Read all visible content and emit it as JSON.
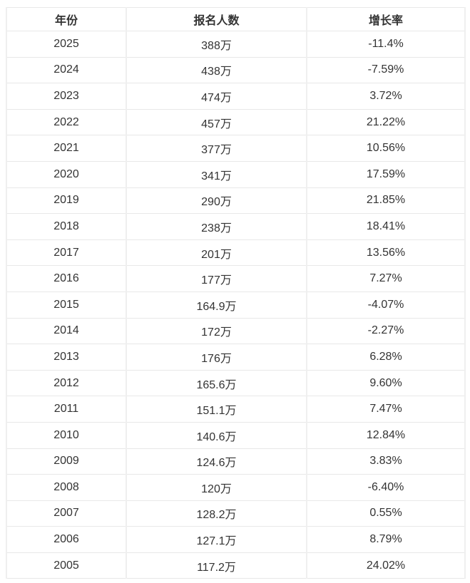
{
  "chart_data": {
    "type": "table",
    "columns": [
      "年份",
      "报名人数",
      "增长率"
    ],
    "rows": [
      [
        "2025",
        "388万",
        "-11.4%"
      ],
      [
        "2024",
        "438万",
        "-7.59%"
      ],
      [
        "2023",
        "474万",
        "3.72%"
      ],
      [
        "2022",
        "457万",
        "21.22%"
      ],
      [
        "2021",
        "377万",
        "10.56%"
      ],
      [
        "2020",
        "341万",
        "17.59%"
      ],
      [
        "2019",
        "290万",
        "21.85%"
      ],
      [
        "2018",
        "238万",
        "18.41%"
      ],
      [
        "2017",
        "201万",
        "13.56%"
      ],
      [
        "2016",
        "177万",
        "7.27%"
      ],
      [
        "2015",
        "164.9万",
        "-4.07%"
      ],
      [
        "2014",
        "172万",
        "-2.27%"
      ],
      [
        "2013",
        "176万",
        "6.28%"
      ],
      [
        "2012",
        "165.6万",
        "9.60%"
      ],
      [
        "2011",
        "151.1万",
        "7.47%"
      ],
      [
        "2010",
        "140.6万",
        "12.84%"
      ],
      [
        "2009",
        "124.6万",
        "3.83%"
      ],
      [
        "2008",
        "120万",
        "-6.40%"
      ],
      [
        "2007",
        "128.2万",
        "0.55%"
      ],
      [
        "2006",
        "127.1万",
        "8.79%"
      ],
      [
        "2005",
        "117.2万",
        "24.02%"
      ]
    ]
  },
  "colors": {
    "text": "#333333",
    "border_horizontal": "#e8e8e8",
    "border_vertical": "#efefef",
    "background": "#ffffff"
  }
}
